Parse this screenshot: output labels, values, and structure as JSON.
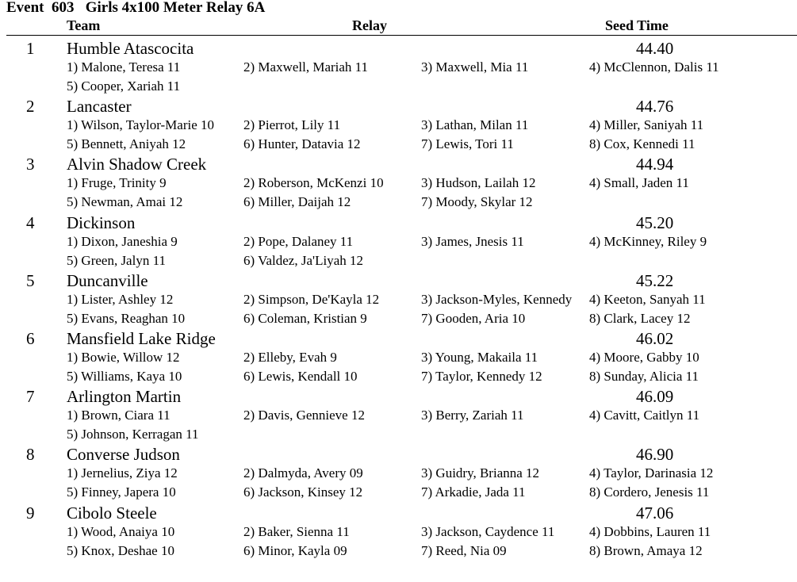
{
  "event": {
    "title": "Event  603   Girls 4x100 Meter Relay 6A"
  },
  "headers": {
    "team": "Team",
    "relay": "Relay",
    "seed": "Seed Time"
  },
  "entries": [
    {
      "place": "1",
      "team": "Humble Atascocita",
      "seed": "44.40",
      "legs": [
        "1) Malone, Teresa 11",
        "2) Maxwell, Mariah 11",
        "3) Maxwell, Mia 11",
        "4) McClennon, Dalis 11",
        "5) Cooper, Xariah 11",
        "",
        "",
        ""
      ]
    },
    {
      "place": "2",
      "team": "Lancaster",
      "seed": "44.76",
      "legs": [
        "1) Wilson, Taylor-Marie 10",
        "2) Pierrot, Lily 11",
        "3) Lathan, Milan 11",
        "4) Miller, Saniyah 11",
        "5) Bennett, Aniyah 12",
        "6) Hunter, Datavia 12",
        "7) Lewis, Tori 11",
        "8) Cox, Kennedi 11"
      ]
    },
    {
      "place": "3",
      "team": "Alvin Shadow Creek",
      "seed": "44.94",
      "legs": [
        "1) Fruge, Trinity 9",
        "2) Roberson, McKenzi 10",
        "3) Hudson, Lailah 12",
        "4) Small, Jaden 11",
        "5) Newman, Amai 12",
        "6) Miller, Daijah 12",
        "7) Moody, Skylar 12",
        ""
      ]
    },
    {
      "place": "4",
      "team": "Dickinson",
      "seed": "45.20",
      "legs": [
        "1) Dixon, Janeshia 9",
        "2) Pope, Dalaney 11",
        "3) James, Jnesis 11",
        "4) McKinney, Riley 9",
        "5) Green, Jalyn 11",
        "6) Valdez, Ja'Liyah 12",
        "",
        ""
      ]
    },
    {
      "place": "5",
      "team": "Duncanville",
      "seed": "45.22",
      "legs": [
        "1) Lister, Ashley 12",
        "2) Simpson, De'Kayla 12",
        "3) Jackson-Myles, Kennedy",
        "4) Keeton, Sanyah 11",
        "5) Evans, Reaghan 10",
        "6) Coleman, Kristian 9",
        "7) Gooden, Aria 10",
        "8) Clark, Lacey 12"
      ]
    },
    {
      "place": "6",
      "team": "Mansfield Lake Ridge",
      "seed": "46.02",
      "legs": [
        "1) Bowie, Willow 12",
        "2) Elleby, Evah 9",
        "3) Young, Makaila 11",
        "4) Moore, Gabby 10",
        "5) Williams, Kaya 10",
        "6) Lewis, Kendall 10",
        "7) Taylor, Kennedy 12",
        "8) Sunday, Alicia 11"
      ]
    },
    {
      "place": "7",
      "team": "Arlington Martin",
      "seed": "46.09",
      "legs": [
        "1) Brown, Ciara 11",
        "2) Davis, Gennieve 12",
        "3) Berry, Zariah 11",
        "4) Cavitt, Caitlyn 11",
        "5) Johnson, Kerragan 11",
        "",
        "",
        ""
      ]
    },
    {
      "place": "8",
      "team": "Converse Judson",
      "seed": "46.90",
      "legs": [
        "1) Jernelius, Ziya 12",
        "2) Dalmyda, Avery 09",
        "3) Guidry, Brianna 12",
        "4) Taylor, Darinasia 12",
        "5) Finney, Japera 10",
        "6) Jackson, Kinsey 12",
        "7) Arkadie, Jada 11",
        "8) Cordero, Jenesis 11"
      ]
    },
    {
      "place": "9",
      "team": "Cibolo Steele",
      "seed": "47.06",
      "legs": [
        "1) Wood, Anaiya 10",
        "2) Baker, Sienna 11",
        "3) Jackson, Caydence 11",
        "4) Dobbins, Lauren 11",
        "5) Knox, Deshae 10",
        "6) Minor, Kayla 09",
        "7) Reed, Nia 09",
        "8) Brown, Amaya 12"
      ]
    }
  ]
}
